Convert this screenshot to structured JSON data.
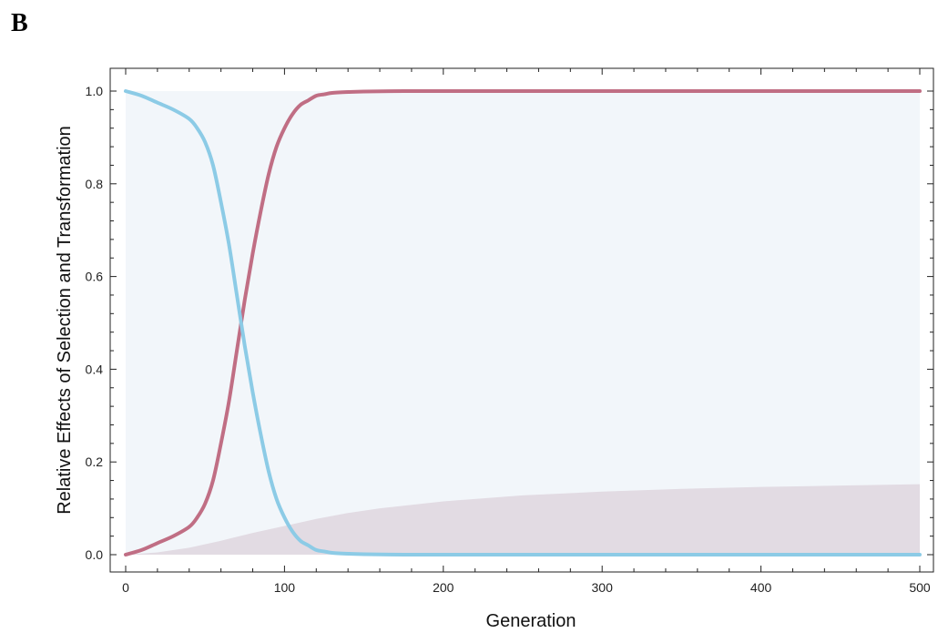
{
  "panel_label": "B",
  "chart_data": {
    "type": "line",
    "title": "",
    "xlabel": "Generation",
    "ylabel": "Relative Effects of Selection and Transformation",
    "xlim": [
      0,
      500
    ],
    "ylim": [
      0,
      1
    ],
    "x_ticks": [
      0,
      100,
      200,
      300,
      400,
      500
    ],
    "y_ticks": [
      0.0,
      0.2,
      0.4,
      0.6,
      0.8,
      1.0
    ],
    "y_tick_labels": [
      "0.0",
      "0.2",
      "0.4",
      "0.6",
      "0.8",
      "1.0"
    ],
    "x_tick_labels": [
      "0",
      "100",
      "200",
      "300",
      "400",
      "500"
    ],
    "grid": false,
    "series": [
      {
        "color": "#c06e84",
        "kind": "line",
        "x": [
          0,
          10,
          20,
          30,
          40,
          45,
          50,
          55,
          60,
          65,
          70,
          75,
          80,
          85,
          90,
          95,
          100,
          105,
          110,
          115,
          120,
          125,
          130,
          140,
          150,
          175,
          200,
          300,
          400,
          500
        ],
        "y": [
          0.0,
          0.01,
          0.025,
          0.04,
          0.06,
          0.08,
          0.11,
          0.16,
          0.24,
          0.33,
          0.44,
          0.55,
          0.65,
          0.74,
          0.82,
          0.88,
          0.92,
          0.95,
          0.97,
          0.98,
          0.99,
          0.993,
          0.996,
          0.998,
          0.999,
          1.0,
          1.0,
          1.0,
          1.0,
          1.0
        ]
      },
      {
        "color": "#8ccbe6",
        "kind": "line",
        "x": [
          0,
          10,
          20,
          30,
          40,
          45,
          50,
          55,
          60,
          65,
          70,
          75,
          80,
          85,
          90,
          95,
          100,
          105,
          110,
          115,
          120,
          125,
          130,
          140,
          150,
          175,
          200,
          300,
          400,
          500
        ],
        "y": [
          1.0,
          0.99,
          0.975,
          0.96,
          0.94,
          0.92,
          0.89,
          0.84,
          0.76,
          0.67,
          0.56,
          0.45,
          0.35,
          0.26,
          0.18,
          0.12,
          0.08,
          0.05,
          0.03,
          0.02,
          0.01,
          0.007,
          0.004,
          0.002,
          0.001,
          0.0,
          0.0,
          0.0,
          0.0,
          0.0
        ]
      },
      {
        "color": "#e2dbe3",
        "kind": "area",
        "x": [
          0,
          20,
          40,
          60,
          80,
          100,
          120,
          140,
          160,
          200,
          250,
          300,
          350,
          400,
          450,
          500
        ],
        "y": [
          0.0,
          0.005,
          0.015,
          0.03,
          0.047,
          0.062,
          0.077,
          0.09,
          0.1,
          0.115,
          0.128,
          0.136,
          0.142,
          0.146,
          0.149,
          0.152
        ]
      }
    ],
    "background_band": {
      "color": "#f2f6fa",
      "y_range": [
        0,
        1
      ]
    }
  }
}
